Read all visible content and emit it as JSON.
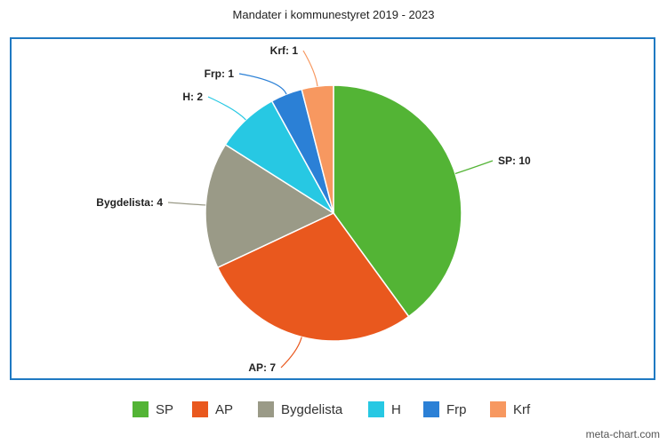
{
  "chart_data": {
    "type": "pie",
    "title": "Mandater i kommunestyret 2019 - 2023",
    "slices": [
      {
        "label": "SP",
        "value": 10,
        "color": "#53b435",
        "data_label": "SP: 10"
      },
      {
        "label": "AP",
        "value": 7,
        "color": "#e9581e",
        "data_label": "AP: 7"
      },
      {
        "label": "Bygdelista",
        "value": 4,
        "color": "#9a9a87",
        "data_label": "Bygdelista: 4"
      },
      {
        "label": "H",
        "value": 2,
        "color": "#27c8e3",
        "data_label": "H: 2"
      },
      {
        "label": "Frp",
        "value": 1,
        "color": "#2b80d6",
        "data_label": "Frp: 1"
      },
      {
        "label": "Krf",
        "value": 1,
        "color": "#f79860",
        "data_label": "Krf: 1"
      }
    ],
    "legend_position": "bottom"
  },
  "watermark": "meta-chart.com",
  "frame_color": "#1f79c2"
}
